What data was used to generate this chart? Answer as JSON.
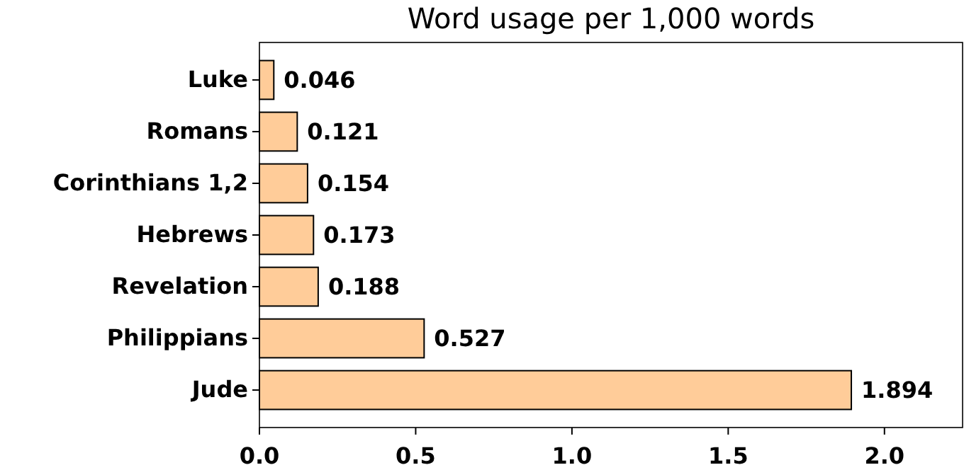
{
  "chart_data": {
    "type": "bar",
    "orientation": "horizontal",
    "title": "Word usage per 1,000 words",
    "categories": [
      "Luke",
      "Romans",
      "Corinthians 1,2",
      "Hebrews",
      "Revelation",
      "Philippians",
      "Jude"
    ],
    "values": [
      0.046,
      0.121,
      0.154,
      0.173,
      0.188,
      0.527,
      1.894
    ],
    "color": "#ffcc99",
    "data_labels": true,
    "xlim": [
      0,
      2.25
    ],
    "xticks": [
      {
        "value": 0,
        "label": "0.0"
      },
      0.5,
      {
        "value": 1,
        "label": "1.0"
      },
      1.5,
      {
        "value": 2,
        "label": "2.0"
      }
    ],
    "grid": false
  }
}
